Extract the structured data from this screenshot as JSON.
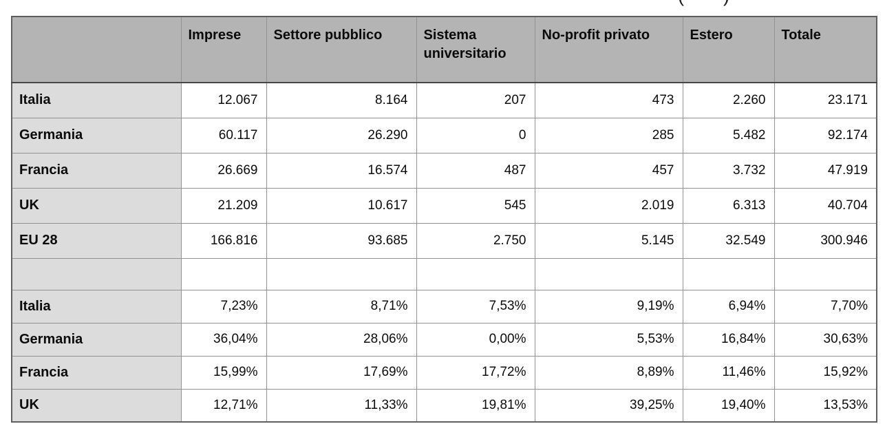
{
  "cropped_title": {
    "left_paren": "(",
    "right_paren": ")"
  },
  "table": {
    "header": [
      "",
      "Imprese",
      "Settore pubblico",
      "Sistema universitario",
      "No-profit privato",
      "Estero",
      "Totale"
    ],
    "rows_absolute": [
      [
        "Italia",
        "12.067",
        "8.164",
        "207",
        "473",
        "2.260",
        "23.171"
      ],
      [
        "Germania",
        "60.117",
        "26.290",
        "0",
        "285",
        "5.482",
        "92.174"
      ],
      [
        "Francia",
        "26.669",
        "16.574",
        "487",
        "457",
        "3.732",
        "47.919"
      ],
      [
        "UK",
        "21.209",
        "10.617",
        "545",
        "2.019",
        "6.313",
        "40.704"
      ],
      [
        "EU 28",
        "166.816",
        "93.685",
        "2.750",
        "5.145",
        "32.549",
        "300.946"
      ]
    ],
    "rows_percent": [
      [
        "Italia",
        "7,23%",
        "8,71%",
        "7,53%",
        "9,19%",
        "6,94%",
        "7,70%"
      ],
      [
        "Germania",
        "36,04%",
        "28,06%",
        "0,00%",
        "5,53%",
        "16,84%",
        "30,63%"
      ],
      [
        "Francia",
        "15,99%",
        "17,69%",
        "17,72%",
        "8,89%",
        "11,46%",
        "15,92%"
      ],
      [
        "UK",
        "12,71%",
        "11,33%",
        "19,81%",
        "39,25%",
        "19,40%",
        "13,53%"
      ]
    ]
  },
  "chart_data": {
    "type": "table",
    "columns": [
      "",
      "Imprese",
      "Settore pubblico",
      "Sistema universitario",
      "No-profit privato",
      "Estero",
      "Totale"
    ],
    "rows": [
      [
        "Italia",
        "12.067",
        "8.164",
        "207",
        "473",
        "2.260",
        "23.171"
      ],
      [
        "Germania",
        "60.117",
        "26.290",
        "0",
        "285",
        "5.482",
        "92.174"
      ],
      [
        "Francia",
        "26.669",
        "16.574",
        "487",
        "457",
        "3.732",
        "47.919"
      ],
      [
        "UK",
        "21.209",
        "10.617",
        "545",
        "2.019",
        "6.313",
        "40.704"
      ],
      [
        "EU 28",
        "166.816",
        "93.685",
        "2.750",
        "5.145",
        "32.549",
        "300.946"
      ],
      [
        "",
        "",
        "",
        "",
        "",
        "",
        ""
      ],
      [
        "Italia",
        "7,23%",
        "8,71%",
        "7,53%",
        "9,19%",
        "6,94%",
        "7,70%"
      ],
      [
        "Germania",
        "36,04%",
        "28,06%",
        "0,00%",
        "5,53%",
        "16,84%",
        "30,63%"
      ],
      [
        "Francia",
        "15,99%",
        "17,69%",
        "17,72%",
        "8,89%",
        "11,46%",
        "15,92%"
      ],
      [
        "UK",
        "12,71%",
        "11,33%",
        "19,81%",
        "39,25%",
        "19,40%",
        "13,53%"
      ]
    ]
  },
  "colors": {
    "header_bg": "#b4b4b4",
    "row_label_bg": "#dcdcdc",
    "inner_border": "#929292",
    "outer_border": "#5f5f5f",
    "text": "#0b0b0b",
    "page_bg": "#ffffff"
  }
}
